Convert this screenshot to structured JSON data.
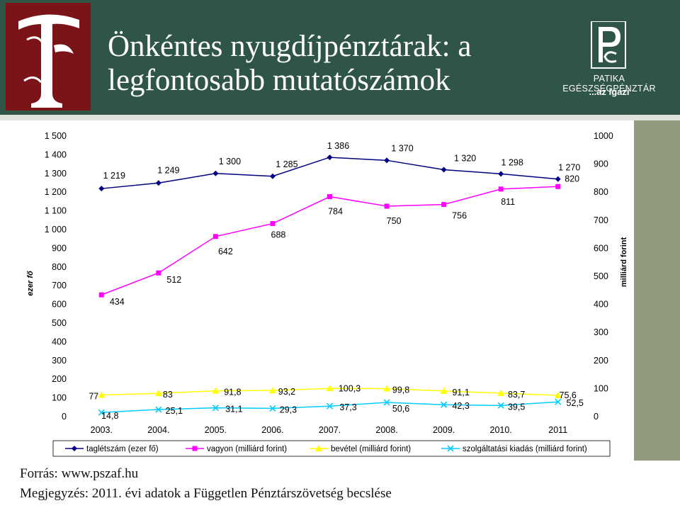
{
  "slide": {
    "title_line1": "Önkéntes nyugdíjpénztárak: a",
    "title_line2": "legfontosabb mutatószámok",
    "brand_name": "PATIKA EGÉSZSÉGPÉNZTÁR",
    "brand_tagline": "...az Igazi",
    "source": "Forrás: www.pszaf.hu",
    "note": "Megjegyzés: 2011. évi adatok a Független Pénztárszövetség becslése"
  },
  "colors": {
    "header": "#2f5548",
    "logo": "#7a1418",
    "taglletszam": "#000080",
    "vagyon": "#ff00ff",
    "bevetel": "#ffff00",
    "kiadas": "#00ccff"
  },
  "chart_data": {
    "type": "line",
    "categories": [
      "2003.",
      "2004.",
      "2005.",
      "2006.",
      "2007.",
      "2008.",
      "2009.",
      "2010.",
      "2011"
    ],
    "ylabel_left": "ezer fő",
    "ylabel_right": "milliárd forint",
    "ylim_left": [
      0,
      1500
    ],
    "ylim_right": [
      0,
      1000
    ],
    "yticks_left": [
      "0",
      "100",
      "200",
      "300",
      "400",
      "500",
      "600",
      "700",
      "800",
      "900",
      "1 000",
      "1 100",
      "1 200",
      "1 300",
      "1 400",
      "1 500"
    ],
    "yticks_right": [
      "0",
      "100",
      "200",
      "300",
      "400",
      "500",
      "600",
      "700",
      "800",
      "900",
      "1000"
    ],
    "legend_position": "bottom",
    "series": [
      {
        "name": "taglétszám (ezer fő)",
        "axis": "left",
        "marker": "diamond",
        "color": "#000080",
        "values": [
          1219,
          1249,
          1300,
          1285,
          1386,
          1370,
          1320,
          1298,
          1270
        ],
        "labels": [
          "1 219",
          "1 249",
          "1 300",
          "1 285",
          "1 386",
          "1 370",
          "1 320",
          "1 298",
          "1 270"
        ]
      },
      {
        "name": "vagyon (milliárd forint)",
        "axis": "right",
        "marker": "square",
        "color": "#ff00ff",
        "values": [
          434,
          512,
          642,
          688,
          784,
          750,
          756,
          811,
          820
        ],
        "labels": [
          "434",
          "512",
          "642",
          "688",
          "784",
          "750",
          "756",
          "811",
          "820"
        ]
      },
      {
        "name": "bevétel (milliárd forint)",
        "axis": "right",
        "marker": "triangle",
        "color": "#ffff00",
        "values": [
          77,
          83,
          91.8,
          93.2,
          100.3,
          99.8,
          91.1,
          83.7,
          75.6
        ],
        "labels": [
          "77",
          "83",
          "91,8",
          "93,2",
          "100,3",
          "99,8",
          "91,1",
          "83,7",
          "75,6"
        ]
      },
      {
        "name": "szolgáltatási kiadás (milliárd forint)",
        "axis": "right",
        "marker": "x",
        "color": "#00ccff",
        "values": [
          14.8,
          25.1,
          31.1,
          29.3,
          37.3,
          50.6,
          42.3,
          39.5,
          52.5
        ],
        "labels": [
          "14,8",
          "25,1",
          "31,1",
          "29,3",
          "37,3",
          "50,6",
          "42,3",
          "39,5",
          "52,5"
        ]
      }
    ]
  }
}
